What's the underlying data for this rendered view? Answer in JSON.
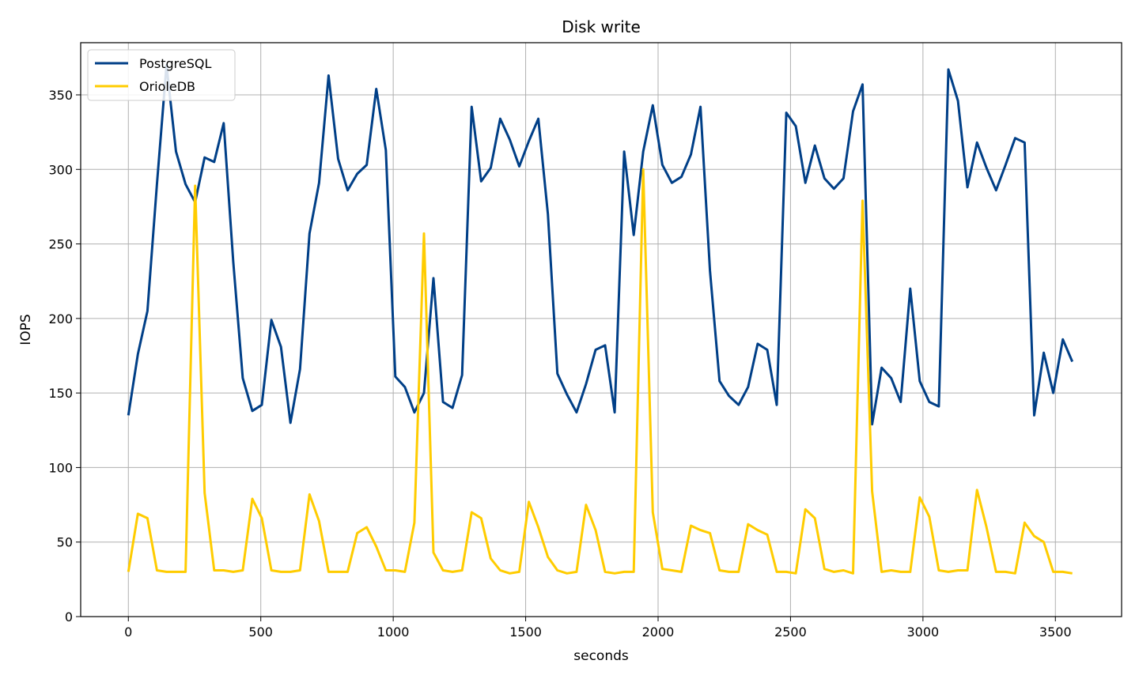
{
  "chart_data": {
    "type": "line",
    "title": "Disk write",
    "xlabel": "seconds",
    "ylabel": "IOPS",
    "xlim": [
      -180,
      3750
    ],
    "ylim": [
      0,
      385
    ],
    "xticks": [
      0,
      500,
      1000,
      1500,
      2000,
      2500,
      3000,
      3500
    ],
    "yticks": [
      0,
      50,
      100,
      150,
      200,
      250,
      300,
      350
    ],
    "grid": true,
    "legend_position": "top-left",
    "x_step": 36,
    "series": [
      {
        "name": "PostgreSQL",
        "color": "#003f87",
        "values": [
          135,
          176,
          205,
          290,
          370,
          312,
          290,
          278,
          308,
          305,
          331,
          238,
          160,
          138,
          142,
          199,
          181,
          130,
          166,
          257,
          291,
          363,
          307,
          286,
          297,
          303,
          354,
          313,
          161,
          154,
          137,
          150,
          227,
          144,
          140,
          162,
          342,
          292,
          301,
          334,
          320,
          302,
          319,
          334,
          270,
          163,
          149,
          137,
          156,
          179,
          182,
          137,
          312,
          256,
          312,
          343,
          303,
          291,
          295,
          310,
          342,
          232,
          158,
          148,
          142,
          154,
          183,
          179,
          142,
          338,
          329,
          291,
          316,
          294,
          287,
          294,
          339,
          357,
          129,
          167,
          160,
          144,
          220,
          158,
          144,
          141,
          367,
          346,
          288,
          318,
          301,
          286,
          303,
          321,
          318,
          135,
          177,
          150,
          186,
          171
        ]
      },
      {
        "name": "OrioleDB",
        "color": "#ffcc00",
        "values": [
          30,
          69,
          66,
          31,
          30,
          30,
          30,
          289,
          83,
          31,
          31,
          30,
          31,
          79,
          66,
          31,
          30,
          30,
          31,
          82,
          64,
          30,
          30,
          30,
          56,
          60,
          47,
          31,
          31,
          30,
          63,
          257,
          43,
          31,
          30,
          31,
          70,
          66,
          39,
          31,
          29,
          30,
          77,
          60,
          40,
          31,
          29,
          30,
          75,
          58,
          30,
          29,
          30,
          30,
          300,
          70,
          32,
          31,
          30,
          61,
          58,
          56,
          31,
          30,
          30,
          62,
          58,
          55,
          30,
          30,
          29,
          72,
          66,
          32,
          30,
          31,
          29,
          279,
          84,
          30,
          31,
          30,
          30,
          80,
          67,
          31,
          30,
          31,
          31,
          85,
          60,
          30,
          30,
          29,
          63,
          54,
          50,
          30,
          30,
          29
        ]
      }
    ]
  }
}
